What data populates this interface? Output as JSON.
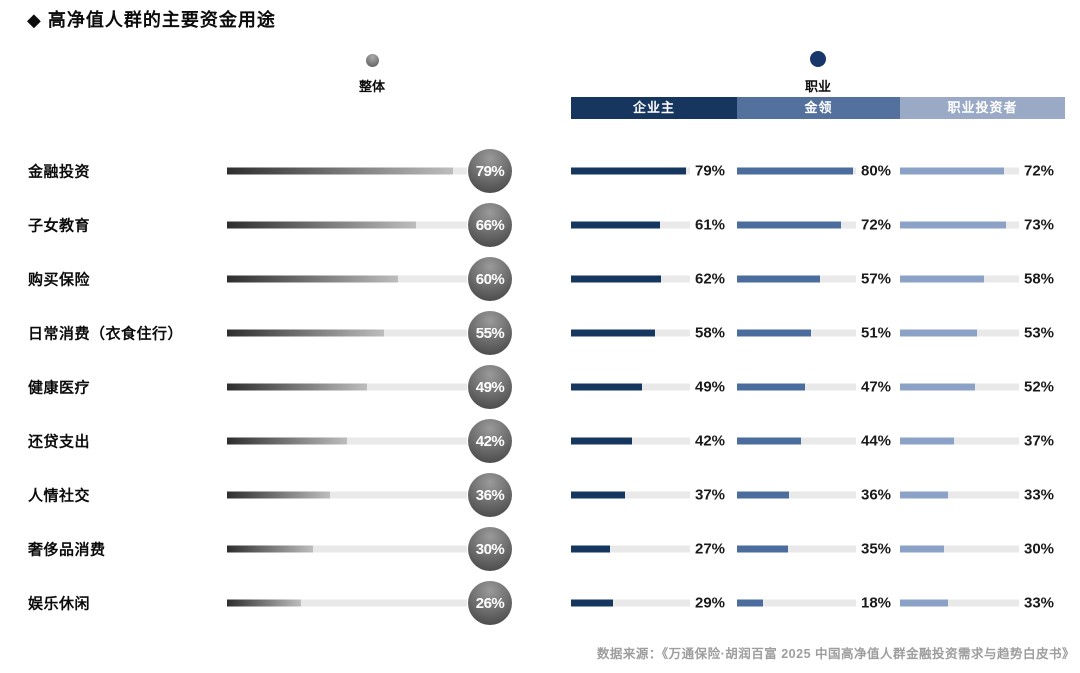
{
  "title": "◆ 高净值人群的主要资金用途",
  "legend": {
    "overall": "整体",
    "occupation": "职业"
  },
  "occupation_columns": [
    "企业主",
    "金领",
    "职业投资者"
  ],
  "source": "数据来源：《万通保险·胡润百富 2025 中国高净值人群金融投资需求与趋势白皮书》",
  "colors": {
    "occupation_headers": [
      "#17365f",
      "#54719e",
      "#9aaac6"
    ],
    "occupation_bars": [
      "#14365f",
      "#4a6d9e",
      "#8ba2c6"
    ],
    "overall_gradient": [
      "#2e2e2e",
      "#bdbdbd"
    ],
    "overall_bubble_top": "#9a9a9a",
    "overall_bubble_bottom": "#3f3f3f",
    "track": "#e9e9e9",
    "legend_navy": "#17376b"
  },
  "chart_data": {
    "type": "bar",
    "title": "高净值人群的主要资金用途",
    "unit": "%",
    "orientation": "horizontal",
    "xlim": [
      0,
      100
    ],
    "scale_max": {
      "overall": 84,
      "occupation": 82
    },
    "categories": [
      "金融投资",
      "子女教育",
      "购买保险",
      "日常消费（衣食住行）",
      "健康医疗",
      "还贷支出",
      "人情社交",
      "奢侈品消费",
      "娱乐休闲"
    ],
    "series": [
      {
        "name": "整体",
        "values": [
          79,
          66,
          60,
          55,
          49,
          42,
          36,
          30,
          26
        ]
      },
      {
        "name": "企业主",
        "values": [
          79,
          61,
          62,
          58,
          49,
          42,
          37,
          27,
          29
        ]
      },
      {
        "name": "金领",
        "values": [
          80,
          72,
          57,
          51,
          47,
          44,
          36,
          35,
          18
        ]
      },
      {
        "name": "职业投资者",
        "values": [
          72,
          73,
          58,
          53,
          52,
          37,
          33,
          30,
          33
        ]
      }
    ],
    "legend_position": "top",
    "grid": false
  }
}
